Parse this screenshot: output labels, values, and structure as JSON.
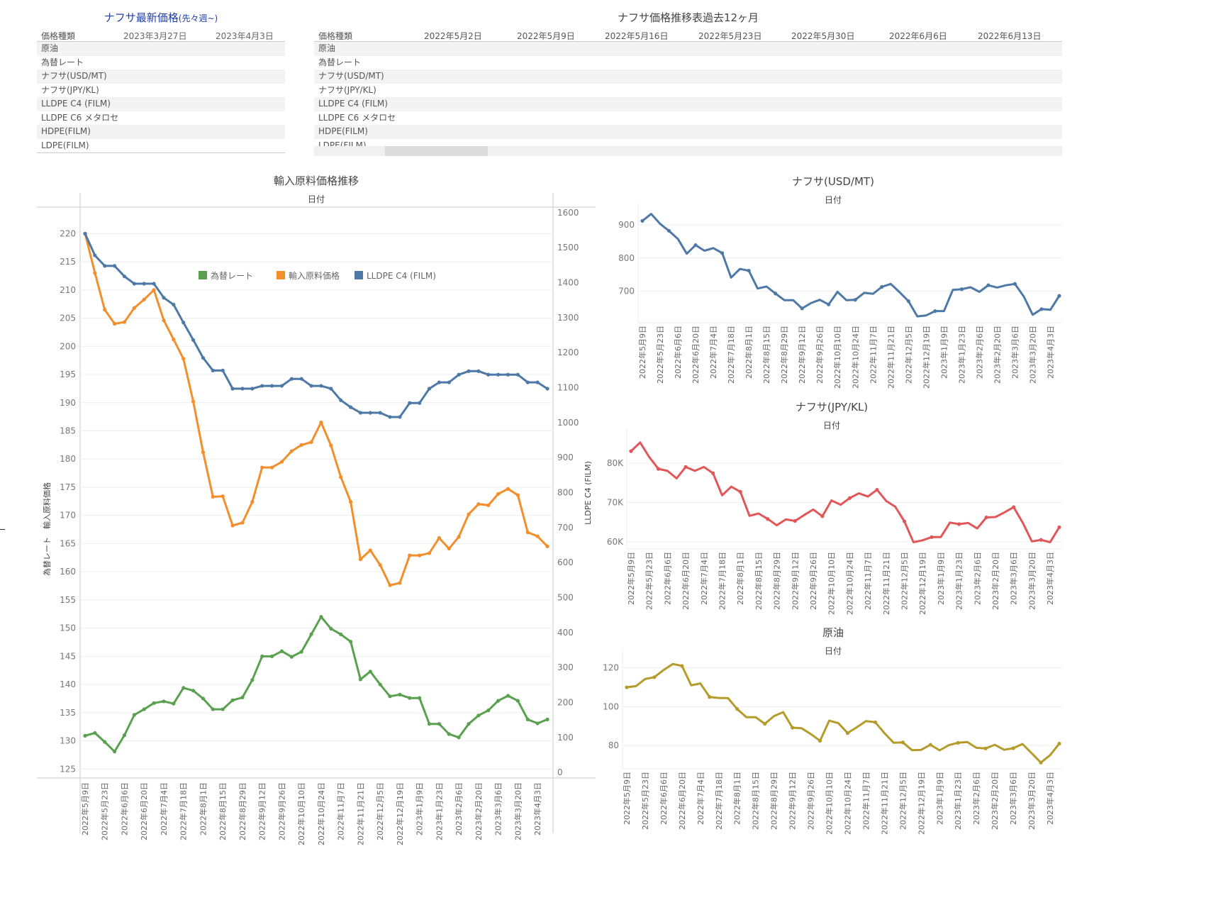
{
  "latest_table": {
    "title": "ナフサ最新価格",
    "title_suffix": "(先々週~)",
    "header": [
      "価格種類",
      "2023年3月27日",
      "2023年4月3日"
    ],
    "rows": [
      "原油",
      "為替レート",
      "ナフサ(USD/MT)",
      "ナフサ(JPY/KL)",
      "LLDPE C4 (FILM)",
      "LLDPE C6 メタロセ",
      "HDPE(FILM)",
      "LDPE(FILM)"
    ]
  },
  "history_table": {
    "title": "ナフサ価格推移表過去12ヶ月",
    "header": [
      "価格種類",
      "2022年5月2日",
      "2022年5月9日",
      "2022年5月16日",
      "2022年5月23日",
      "2022年5月30日",
      "2022年6月6日",
      "2022年6月13日"
    ],
    "rows": [
      "原油",
      "為替レート",
      "ナフサ(USD/MT)",
      "ナフサ(JPY/KL)",
      "LLDPE C4 (FILM)",
      "LLDPE C6 メタロセ",
      "HDPE(FILM)",
      "LDPE(FILM)"
    ],
    "scroll_position": 0.0
  },
  "colors": {
    "green": "#59a14f",
    "orange": "#f28e2b",
    "blue": "#4e79a7",
    "red": "#e15759",
    "olive": "#b59b2a"
  },
  "chart_data": [
    {
      "type": "line",
      "title": "輸入原料価格推移",
      "xlabel": "日付",
      "ylabel": "為替レート　輸入原料価格",
      "y2label": "LLDPE C4 (FILM)",
      "ylim": [
        123.4,
        224.7
      ],
      "y2lim": [
        -16,
        1616
      ],
      "yticks": [
        125,
        130,
        135,
        140,
        145,
        150,
        155,
        160,
        165,
        170,
        175,
        180,
        185,
        190,
        195,
        200,
        205,
        210,
        215,
        220
      ],
      "y2ticks": [
        0,
        100,
        200,
        300,
        400,
        500,
        600,
        700,
        800,
        900,
        1000,
        1100,
        1200,
        1300,
        1400,
        1500,
        1600
      ],
      "legend": [
        "為替レート",
        "輸入原料価格",
        "LLDPE C4 (FILM)"
      ],
      "legend_position": "top-center",
      "xtick_labels": [
        "2022年5月9日",
        "2022年5月23日",
        "2022年6月6日",
        "2022年6月20日",
        "2022年7月4日",
        "2022年7月18日",
        "2022年8月1日",
        "2022年8月15日",
        "2022年8月29日",
        "2022年9月12日",
        "2022年9月26日",
        "2022年10月10日",
        "2022年10月24日",
        "2022年11月7日",
        "2022年11月21日",
        "2022年12月5日",
        "2022年12月19日",
        "2023年1月9日",
        "2023年1月23日",
        "2023年2月6日",
        "2023年2月20日",
        "2023年3月6日",
        "2023年3月20日",
        "2023年4月3日"
      ],
      "series": [
        {
          "name": "為替レート",
          "axis": "left",
          "color": "#59a14f",
          "values": [
            130.9,
            131.4,
            129.8,
            128.1,
            131,
            134.6,
            135.6,
            136.7,
            137,
            136.6,
            139.4,
            138.9,
            137.5,
            135.6,
            135.6,
            137.2,
            137.7,
            140.8,
            145,
            145,
            145.9,
            144.9,
            145.8,
            148.9,
            152,
            149.9,
            148.9,
            147.6,
            140.9,
            142.3,
            140,
            137.9,
            138.2,
            137.6,
            137.6,
            133,
            133,
            131.2,
            130.6,
            133,
            134.5,
            135.4,
            137.1,
            138,
            137.1,
            133.8,
            133.1,
            133.8
          ]
        },
        {
          "name": "輸入原料価格",
          "axis": "left",
          "color": "#f28e2b",
          "values": [
            220,
            213,
            206.5,
            204,
            204.3,
            206.8,
            208.3,
            210,
            204.6,
            201.2,
            197.8,
            190.2,
            181.2,
            173.3,
            173.4,
            168.2,
            168.7,
            172.4,
            178.5,
            178.5,
            179.5,
            181.4,
            182.5,
            183,
            186.5,
            182.4,
            176.8,
            172.4,
            162.2,
            163.8,
            161.2,
            157.6,
            158,
            162.9,
            162.9,
            163.3,
            166,
            164.1,
            166.2,
            170.2,
            172,
            171.8,
            173.8,
            174.7,
            173.6,
            167,
            166.3,
            164.5
          ]
        },
        {
          "name": "LLDPE C4 (FILM)",
          "axis": "right",
          "color": "#4e79a7",
          "values": [
            1540,
            1478,
            1448,
            1448,
            1418,
            1397,
            1397,
            1397,
            1357,
            1337,
            1286,
            1236,
            1185,
            1149,
            1149,
            1097,
            1097,
            1097,
            1105,
            1105,
            1105,
            1125,
            1125,
            1105,
            1105,
            1097,
            1064,
            1044,
            1028,
            1028,
            1028,
            1016,
            1016,
            1056,
            1056,
            1097,
            1115,
            1115,
            1137,
            1147,
            1147,
            1137,
            1137,
            1137,
            1137,
            1115,
            1115,
            1097
          ]
        }
      ]
    },
    {
      "type": "line",
      "title": "ナフサ(USD/MT)",
      "xlabel": "日付",
      "ylim": [
        605,
        945
      ],
      "yticks": [
        700,
        800,
        900
      ],
      "xtick_labels": [
        "2022年5月9日",
        "2022年5月23日",
        "2022年6月6日",
        "2022年6月20日",
        "2022年7月4日",
        "2022年7月18日",
        "2022年8月1日",
        "2022年8月15日",
        "2022年8月29日",
        "2022年9月12日",
        "2022年9月26日",
        "2022年10月10日",
        "2022年10月24日",
        "2022年11月7日",
        "2022年11月21日",
        "2022年12月5日",
        "2022年12月19日",
        "2023年1月9日",
        "2023年1月23日",
        "2023年2月6日",
        "2023年2月20日",
        "2023年3月6日",
        "2023年3月20日",
        "2023年4月3日"
      ],
      "series": [
        {
          "name": "ナフサ(USD/MT)",
          "color": "#4e79a7",
          "values": [
            912,
            933,
            903,
            882,
            858,
            813,
            839,
            822,
            830,
            815,
            741,
            767,
            762,
            708,
            714,
            693,
            673,
            673,
            648,
            664,
            674,
            660,
            698,
            673,
            674,
            695,
            692,
            713,
            722,
            697,
            670,
            624,
            627,
            640,
            640,
            704,
            706,
            712,
            698,
            718,
            711,
            718,
            722,
            684,
            629,
            646,
            644,
            686
          ]
        }
      ]
    },
    {
      "type": "line",
      "title": "ナフサ(JPY/KL)",
      "xlabel": "日付",
      "ylim": [
        58200,
        86800
      ],
      "yticks": [
        60000,
        70000,
        80000
      ],
      "ytick_labels": [
        "60K",
        "70K",
        "80K"
      ],
      "xtick_labels": [
        "2022年5月9日",
        "2022年5月23日",
        "2022年6月6日",
        "2022年6月20日",
        "2022年7月4日",
        "2022年7月18日",
        "2022年8月1日",
        "2022年8月15日",
        "2022年8月29日",
        "2022年9月12日",
        "2022年9月26日",
        "2022年10月10日",
        "2022年10月24日",
        "2022年11月7日",
        "2022年11月21日",
        "2022年12月5日",
        "2022年12月19日",
        "2023年1月9日",
        "2023年1月23日",
        "2023年2月6日",
        "2023年2月20日",
        "2023年3月6日",
        "2023年3月20日",
        "2023年4月3日"
      ],
      "series": [
        {
          "name": "ナフサ(JPY/KL)",
          "color": "#e15759",
          "values": [
            83000,
            85200,
            81500,
            78500,
            78000,
            76100,
            79000,
            78000,
            79000,
            77400,
            71800,
            74000,
            72700,
            66600,
            67200,
            65800,
            64200,
            65700,
            65300,
            66800,
            68200,
            66500,
            70500,
            69400,
            71100,
            72300,
            71500,
            73200,
            70400,
            68900,
            65200,
            59900,
            60400,
            61200,
            61200,
            64900,
            64500,
            64800,
            63400,
            66200,
            66300,
            67500,
            68800,
            64800,
            60100,
            60500,
            59900,
            63700
          ]
        }
      ]
    },
    {
      "type": "line",
      "title": "原油",
      "xlabel": "日付",
      "ylim": [
        68,
        125
      ],
      "yticks": [
        80,
        100,
        120
      ],
      "xtick_labels": [
        "2022年5月9日",
        "2022年5月23日",
        "2022年6月6日",
        "2022年6月20日",
        "2022年7月4日",
        "2022年7月18日",
        "2022年8月1日",
        "2022年8月15日",
        "2022年8月29日",
        "2022年9月12日",
        "2022年9月26日",
        "2022年10月10日",
        "2022年10月24日",
        "2022年11月7日",
        "2022年11月21日",
        "2022年12月5日",
        "2022年12月19日",
        "2023年1月9日",
        "2023年1月23日",
        "2023年2月6日",
        "2023年2月20日",
        "2023年3月6日",
        "2023年3月20日",
        "2023年4月3日"
      ],
      "series": [
        {
          "name": "原油",
          "color": "#b59b2a",
          "values": [
            110,
            110.6,
            114.3,
            115.2,
            118.9,
            122,
            121,
            111,
            112,
            105,
            104.5,
            104.4,
            98.8,
            94.6,
            94.6,
            91.2,
            95.2,
            97.2,
            89.2,
            88.9,
            85.9,
            82.4,
            92.8,
            91.5,
            86.4,
            89.4,
            92.6,
            92,
            86.4,
            81.4,
            81.6,
            77.6,
            77.8,
            80.4,
            77.5,
            80.2,
            81.4,
            81.8,
            78.8,
            78.5,
            80.4,
            77.8,
            78.6,
            80.8,
            76,
            71.2,
            75,
            81
          ]
        }
      ]
    }
  ]
}
